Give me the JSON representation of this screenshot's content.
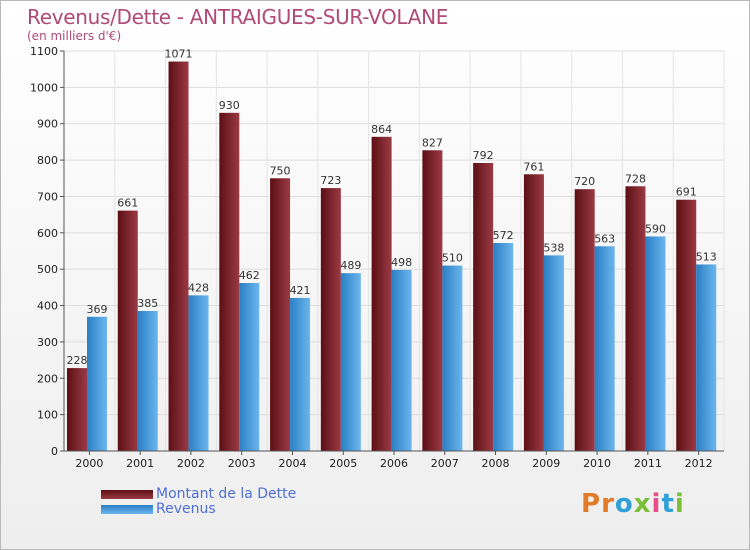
{
  "title": "Revenus/Dette - ANTRAIGUES-SUR-VOLANE",
  "subtitle": "(en milliers d'€)",
  "logo": "Proxiti",
  "colors": {
    "dette_dark": "#5c0f14",
    "dette_light": "#9b3a44",
    "revenus_dark": "#2a7fc4",
    "revenus_light": "#6cb6ee",
    "title": "#b04a76",
    "legend_text": "#4f6fd6"
  },
  "chart_data": {
    "type": "bar",
    "title": "Revenus/Dette - ANTRAIGUES-SUR-VOLANE",
    "subtitle": "(en milliers d'€)",
    "categories": [
      "2000",
      "2001",
      "2002",
      "2003",
      "2004",
      "2005",
      "2006",
      "2007",
      "2008",
      "2009",
      "2010",
      "2011",
      "2012"
    ],
    "series": [
      {
        "name": "Montant de la Dette",
        "values": [
          228,
          661,
          1071,
          930,
          750,
          723,
          864,
          827,
          792,
          761,
          720,
          728,
          691
        ]
      },
      {
        "name": "Revenus",
        "values": [
          369,
          385,
          428,
          462,
          421,
          489,
          498,
          510,
          572,
          538,
          563,
          590,
          513
        ]
      }
    ],
    "ylim": [
      0,
      1100
    ],
    "yticks": [
      0,
      100,
      200,
      300,
      400,
      500,
      600,
      700,
      800,
      900,
      1000,
      1100
    ],
    "grid": true,
    "legend_position": "bottom-left"
  }
}
